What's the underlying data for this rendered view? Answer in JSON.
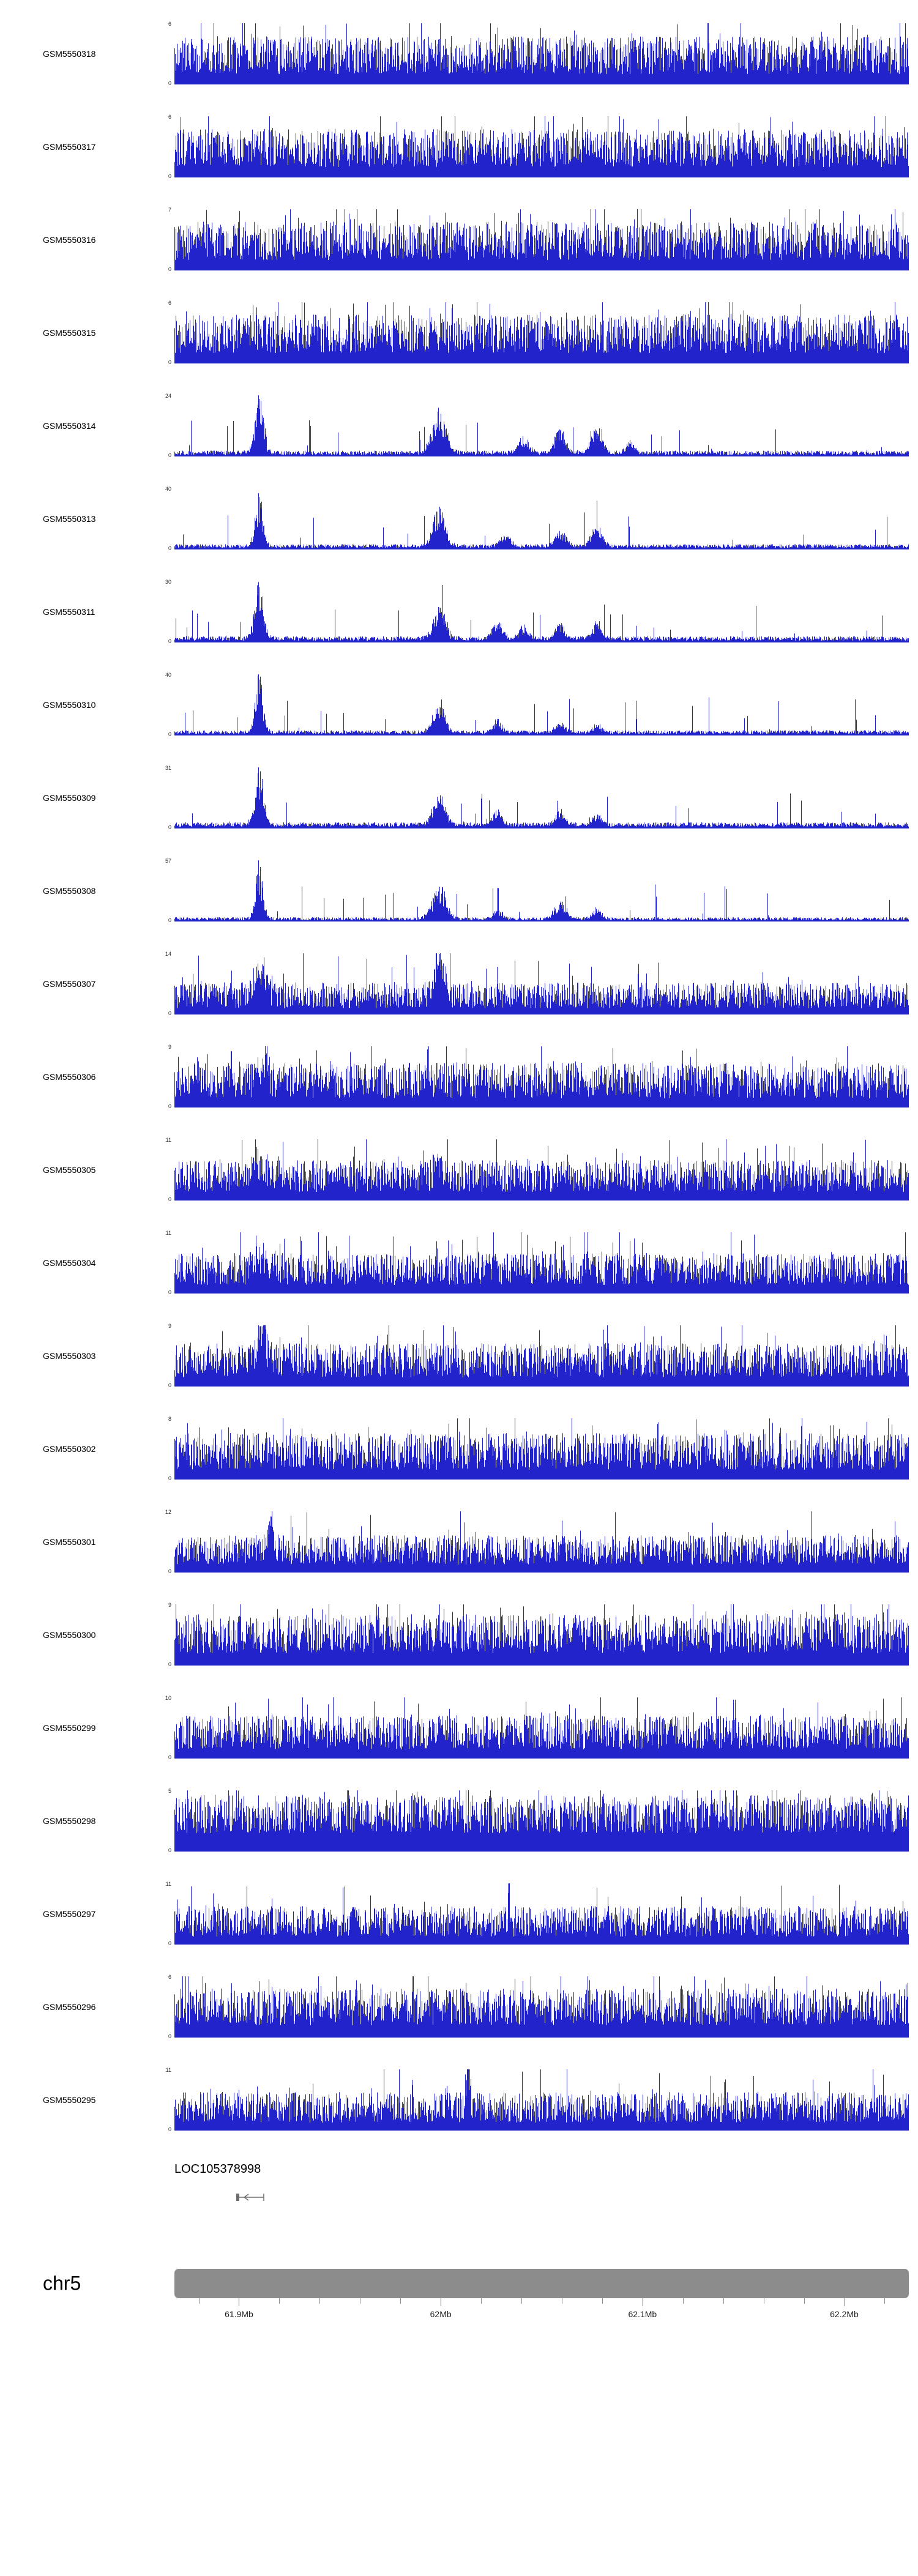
{
  "colors": {
    "signal": "#2323cc",
    "ideogram": "#8c8c8c",
    "gene_glyph": "#6e6e6e",
    "axis_text": "#222222"
  },
  "chart_data": {
    "type": "area",
    "title": "",
    "description": "Genome browser coverage tracks for 23 GSM samples over chr5 61.87-62.23 Mb",
    "y_min_label": "0",
    "x_axis": {
      "domain_mb": [
        61.868,
        62.232
      ],
      "minor_tick_start_mb": 61.88,
      "minor_tick_step_mb": 0.02,
      "minor_tick_end_mb": 62.22,
      "major": [
        {
          "pos": 61.9,
          "label": "61.9Mb"
        },
        {
          "pos": 62.0,
          "label": "62Mb"
        },
        {
          "pos": 62.1,
          "label": "62.1Mb"
        },
        {
          "pos": 62.2,
          "label": "62.2Mb"
        }
      ]
    },
    "tracks": [
      {
        "label": "GSM5550318",
        "ymax": 6,
        "base": 0.17,
        "noise": 0.62,
        "spikes": 0.06,
        "peaks": []
      },
      {
        "label": "GSM5550317",
        "ymax": 6,
        "base": 0.17,
        "noise": 0.62,
        "spikes": 0.06,
        "peaks": []
      },
      {
        "label": "GSM5550316",
        "ymax": 7,
        "base": 0.17,
        "noise": 0.63,
        "spikes": 0.06,
        "peaks": []
      },
      {
        "label": "GSM5550315",
        "ymax": 6,
        "base": 0.17,
        "noise": 0.63,
        "spikes": 0.06,
        "peaks": []
      },
      {
        "label": "GSM5550314",
        "ymax": 24,
        "base": 0.025,
        "noise": 0.07,
        "spikes": 0.025,
        "peaks": [
          {
            "pos": 0.115,
            "amp": 1.0,
            "w": 0.006
          },
          {
            "pos": 0.36,
            "amp": 0.8,
            "w": 0.009
          },
          {
            "pos": 0.475,
            "amp": 0.28,
            "w": 0.007
          },
          {
            "pos": 0.525,
            "amp": 0.42,
            "w": 0.007
          },
          {
            "pos": 0.575,
            "amp": 0.5,
            "w": 0.007
          },
          {
            "pos": 0.62,
            "amp": 0.2,
            "w": 0.006
          }
        ]
      },
      {
        "label": "GSM5550313",
        "ymax": 40,
        "base": 0.025,
        "noise": 0.06,
        "spikes": 0.02,
        "peaks": [
          {
            "pos": 0.115,
            "amp": 1.0,
            "w": 0.005
          },
          {
            "pos": 0.36,
            "amp": 0.68,
            "w": 0.008
          },
          {
            "pos": 0.45,
            "amp": 0.22,
            "w": 0.007
          },
          {
            "pos": 0.525,
            "amp": 0.28,
            "w": 0.007
          },
          {
            "pos": 0.575,
            "amp": 0.42,
            "w": 0.007
          }
        ]
      },
      {
        "label": "GSM5550311",
        "ymax": 30,
        "base": 0.03,
        "noise": 0.07,
        "spikes": 0.025,
        "peaks": [
          {
            "pos": 0.115,
            "amp": 1.0,
            "w": 0.006
          },
          {
            "pos": 0.36,
            "amp": 0.6,
            "w": 0.008
          },
          {
            "pos": 0.44,
            "amp": 0.3,
            "w": 0.007
          },
          {
            "pos": 0.475,
            "amp": 0.22,
            "w": 0.006
          },
          {
            "pos": 0.525,
            "amp": 0.28,
            "w": 0.006
          },
          {
            "pos": 0.575,
            "amp": 0.3,
            "w": 0.006
          }
        ]
      },
      {
        "label": "GSM5550310",
        "ymax": 40,
        "base": 0.025,
        "noise": 0.06,
        "spikes": 0.02,
        "peaks": [
          {
            "pos": 0.115,
            "amp": 1.0,
            "w": 0.005
          },
          {
            "pos": 0.36,
            "amp": 0.5,
            "w": 0.008
          },
          {
            "pos": 0.44,
            "amp": 0.22,
            "w": 0.006
          },
          {
            "pos": 0.525,
            "amp": 0.18,
            "w": 0.006
          },
          {
            "pos": 0.575,
            "amp": 0.15,
            "w": 0.006
          }
        ]
      },
      {
        "label": "GSM5550309",
        "ymax": 31,
        "base": 0.03,
        "noise": 0.07,
        "spikes": 0.025,
        "peaks": [
          {
            "pos": 0.115,
            "amp": 1.0,
            "w": 0.006
          },
          {
            "pos": 0.36,
            "amp": 0.55,
            "w": 0.008
          },
          {
            "pos": 0.44,
            "amp": 0.26,
            "w": 0.006
          },
          {
            "pos": 0.525,
            "amp": 0.24,
            "w": 0.006
          },
          {
            "pos": 0.575,
            "amp": 0.2,
            "w": 0.006
          }
        ]
      },
      {
        "label": "GSM5550308",
        "ymax": 57,
        "base": 0.02,
        "noise": 0.05,
        "spikes": 0.02,
        "peaks": [
          {
            "pos": 0.115,
            "amp": 1.0,
            "w": 0.005
          },
          {
            "pos": 0.36,
            "amp": 0.62,
            "w": 0.009
          },
          {
            "pos": 0.44,
            "amp": 0.18,
            "w": 0.006
          },
          {
            "pos": 0.525,
            "amp": 0.3,
            "w": 0.008
          },
          {
            "pos": 0.575,
            "amp": 0.2,
            "w": 0.006
          }
        ]
      },
      {
        "label": "GSM5550307",
        "ymax": 14,
        "base": 0.1,
        "noise": 0.42,
        "spikes": 0.05,
        "peaks": [
          {
            "pos": 0.115,
            "amp": 0.5,
            "w": 0.008
          },
          {
            "pos": 0.36,
            "amp": 0.85,
            "w": 0.007
          }
        ]
      },
      {
        "label": "GSM5550306",
        "ymax": 9,
        "base": 0.15,
        "noise": 0.58,
        "spikes": 0.06,
        "peaks": [
          {
            "pos": 0.12,
            "amp": 0.35,
            "w": 0.006
          }
        ]
      },
      {
        "label": "GSM5550305",
        "ymax": 11,
        "base": 0.14,
        "noise": 0.52,
        "spikes": 0.06,
        "peaks": [
          {
            "pos": 0.115,
            "amp": 0.5,
            "w": 0.007
          },
          {
            "pos": 0.36,
            "amp": 0.25,
            "w": 0.006
          }
        ]
      },
      {
        "label": "GSM5550304",
        "ymax": 11,
        "base": 0.14,
        "noise": 0.52,
        "spikes": 0.06,
        "peaks": [
          {
            "pos": 0.115,
            "amp": 0.35,
            "w": 0.006
          }
        ]
      },
      {
        "label": "GSM5550303",
        "ymax": 9,
        "base": 0.15,
        "noise": 0.56,
        "spikes": 0.06,
        "peaks": [
          {
            "pos": 0.12,
            "amp": 0.75,
            "w": 0.005
          }
        ]
      },
      {
        "label": "GSM5550302",
        "ymax": 8,
        "base": 0.16,
        "noise": 0.6,
        "spikes": 0.06,
        "peaks": []
      },
      {
        "label": "GSM5550301",
        "ymax": 12,
        "base": 0.13,
        "noise": 0.48,
        "spikes": 0.05,
        "peaks": [
          {
            "pos": 0.13,
            "amp": 0.65,
            "w": 0.004
          }
        ]
      },
      {
        "label": "GSM5550300",
        "ymax": 9,
        "base": 0.2,
        "noise": 0.64,
        "spikes": 0.07,
        "peaks": []
      },
      {
        "label": "GSM5550299",
        "ymax": 10,
        "base": 0.15,
        "noise": 0.55,
        "spikes": 0.06,
        "peaks": []
      },
      {
        "label": "GSM5550298",
        "ymax": 5,
        "base": 0.3,
        "noise": 0.62,
        "spikes": 0.08,
        "peaks": []
      },
      {
        "label": "GSM5550297",
        "ymax": 11,
        "base": 0.13,
        "noise": 0.5,
        "spikes": 0.05,
        "peaks": []
      },
      {
        "label": "GSM5550296",
        "ymax": 6,
        "base": 0.2,
        "noise": 0.6,
        "spikes": 0.07,
        "peaks": []
      },
      {
        "label": "GSM5550295",
        "ymax": 11,
        "base": 0.13,
        "noise": 0.5,
        "spikes": 0.05,
        "peaks": [
          {
            "pos": 0.4,
            "amp": 1.0,
            "w": 0.0025
          }
        ]
      }
    ]
  },
  "gene_track": {
    "gene": "LOC105378998"
  },
  "ideogram": {
    "chromosome": "chr5"
  }
}
